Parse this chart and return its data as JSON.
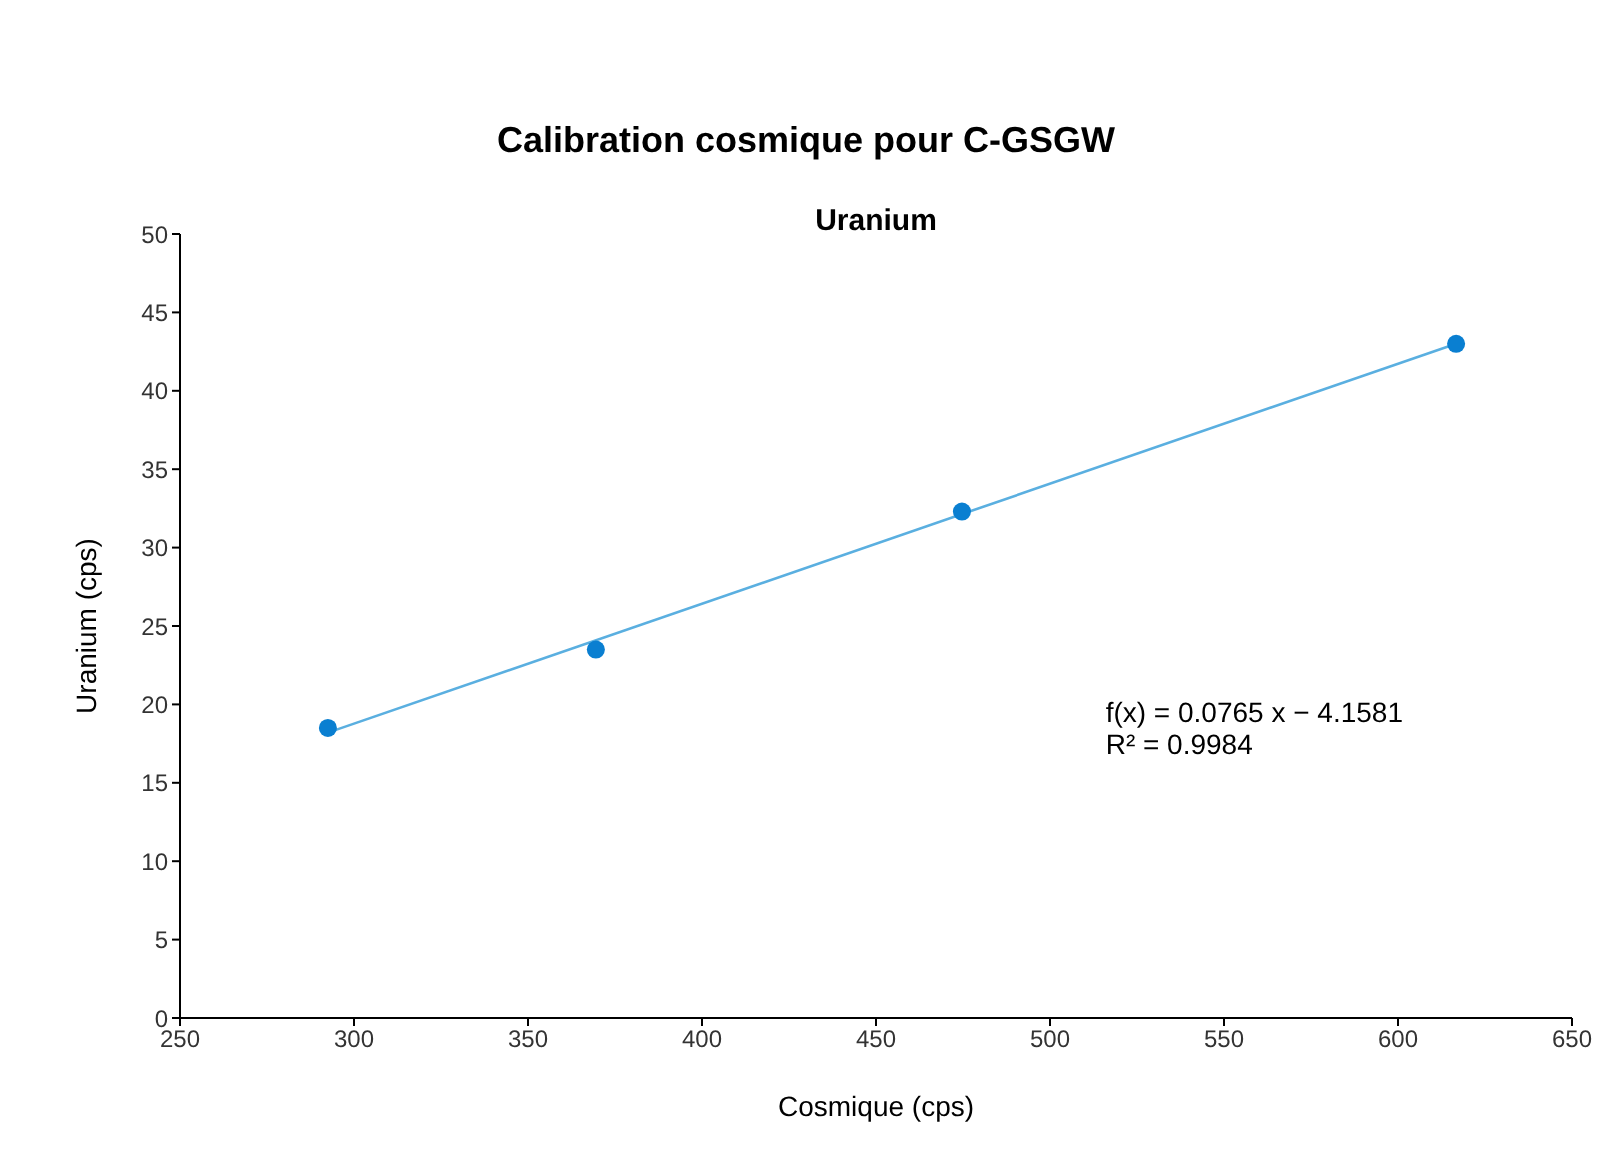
{
  "chart_data": {
    "type": "scatter",
    "title": "Calibration cosmique pour C-GSGW",
    "subtitle": "Uranium",
    "xlabel": "Cosmique (cps)",
    "ylabel": "Uranium (cps)",
    "xlim": [
      250,
      650
    ],
    "xticks": [
      250,
      300,
      350,
      400,
      450,
      500,
      550,
      600,
      650
    ],
    "ylim": [
      0,
      50
    ],
    "yticks": [
      0,
      5,
      10,
      15,
      20,
      25,
      30,
      35,
      40,
      45,
      50
    ],
    "marker": "circle",
    "series": [
      {
        "color": "#0a7fd1",
        "x": [
          292.5,
          369.5,
          474.7,
          616.7
        ],
        "values": [
          18.5,
          23.5,
          32.3,
          43.0
        ]
      },
      {
        "type": "line",
        "color": "#5aafe0",
        "x": [
          292.5,
          616.7
        ],
        "values": [
          18.2,
          43.0
        ],
        "marker": "none"
      }
    ],
    "annotations": [
      "f(x) = 0.0765 x − 4.1581",
      "R² = 0.9984"
    ]
  }
}
